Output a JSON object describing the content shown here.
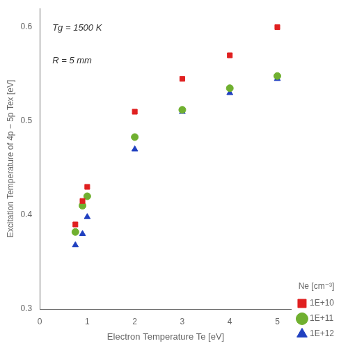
{
  "chart_data": {
    "type": "scatter",
    "xlabel": "Electron Temperature Te [eV]",
    "ylabel": "Excitation Temperature of 4p − 5p Tex [eV]",
    "annotations": [
      "Tg = 1500 K",
      "R = 5 mm"
    ],
    "legend_title": "Ne [cm⁻³]",
    "legend": "lower right",
    "grid": false,
    "xlim": [
      0,
      5.3
    ],
    "ylim": [
      0.3,
      0.62
    ],
    "xticks": [
      0,
      1,
      2,
      3,
      4,
      5
    ],
    "yticks": [
      0.3,
      0.4,
      0.5,
      0.6
    ],
    "series": [
      {
        "name": "1E+10",
        "color": "#e02020",
        "marker": "square",
        "x": [
          0.75,
          0.9,
          1.0,
          2.0,
          3.0,
          4.0,
          5.0
        ],
        "values": [
          0.39,
          0.415,
          0.43,
          0.51,
          0.545,
          0.57,
          0.6
        ]
      },
      {
        "name": "1E+11",
        "color": "#70b030",
        "marker": "circle",
        "x": [
          0.75,
          0.9,
          1.0,
          2.0,
          3.0,
          4.0,
          5.0
        ],
        "values": [
          0.382,
          0.41,
          0.42,
          0.483,
          0.512,
          0.535,
          0.548
        ]
      },
      {
        "name": "1E+12",
        "color": "#2040c0",
        "marker": "triangle",
        "x": [
          0.75,
          0.9,
          1.0,
          2.0,
          3.0,
          4.0,
          5.0
        ],
        "values": [
          0.368,
          0.38,
          0.398,
          0.47,
          0.51,
          0.53,
          0.545
        ]
      }
    ]
  }
}
